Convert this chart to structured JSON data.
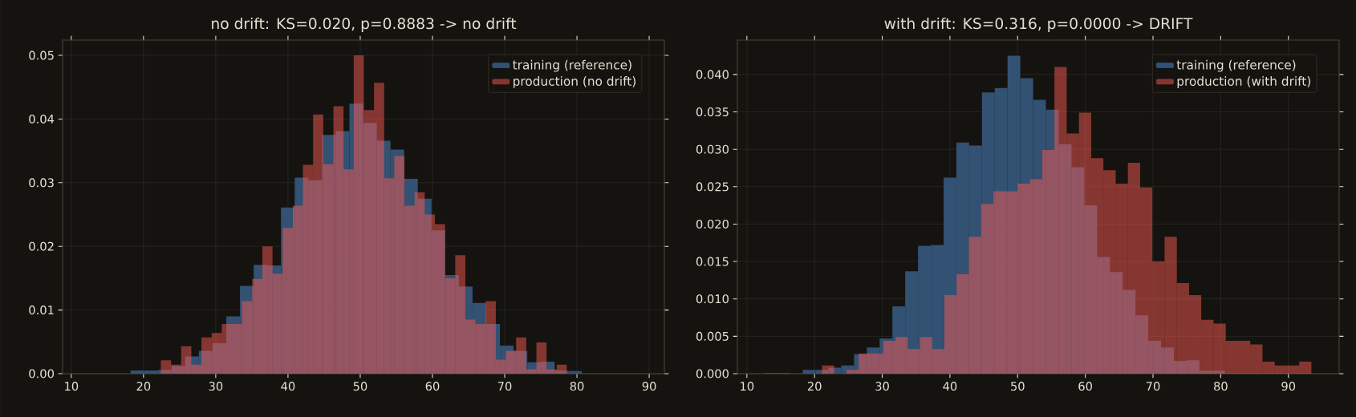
{
  "chart_data": [
    {
      "type": "histogram",
      "title": "no drift: KS=0.020, p=0.8883 -> no drift",
      "xlim": [
        8.8,
        92.1
      ],
      "ylim": [
        0,
        0.0524
      ],
      "xticks": [
        10,
        20,
        30,
        40,
        50,
        60,
        70,
        80,
        90
      ],
      "yticks": [
        {
          "value": 0,
          "label": "0.00"
        },
        {
          "value": 0.01,
          "label": "0.01"
        },
        {
          "value": 0.02,
          "label": "0.02"
        },
        {
          "value": 0.03,
          "label": "0.03"
        },
        {
          "value": 0.04,
          "label": "0.04"
        },
        {
          "value": 0.05,
          "label": "0.05"
        }
      ],
      "grid": true,
      "legend": "top right",
      "bins": [
        18.2,
        20.09,
        21.99,
        23.88,
        25.78,
        27.67,
        29.56,
        31.46,
        33.35,
        35.25,
        37.14,
        39.03,
        40.93,
        42.82,
        44.72,
        46.61,
        48.5,
        50.4,
        52.29,
        54.19,
        56.08,
        57.97,
        59.87,
        61.76,
        63.66,
        65.55,
        67.44,
        69.34,
        71.23,
        73.13,
        75.02,
        76.91,
        78.81,
        80.7
      ],
      "series": [
        {
          "name": "training (reference)",
          "color": "#335172",
          "values": [
            0.0005,
            0.0005,
            0.0006,
            0.0012,
            0.0027,
            0.0036,
            0.0048,
            0.009,
            0.0138,
            0.0171,
            0.017,
            0.0261,
            0.0308,
            0.0304,
            0.0375,
            0.0381,
            0.0424,
            0.0394,
            0.0366,
            0.0352,
            0.0306,
            0.0275,
            0.0225,
            0.0155,
            0.0137,
            0.0111,
            0.0078,
            0.0044,
            0.0036,
            0.0018,
            0.0019,
            0.0005,
            0.0004
          ]
        },
        {
          "name": "production (no drift)",
          "color": "#f75951",
          "bins": [
            22.4,
            23.81,
            25.21,
            26.62,
            28.02,
            29.43,
            30.83,
            32.24,
            33.64,
            35.05,
            36.45,
            37.86,
            39.26,
            40.67,
            42.07,
            43.48,
            44.88,
            46.29,
            47.69,
            49.1,
            50.5,
            51.91,
            53.31,
            54.72,
            56.12,
            57.53,
            58.93,
            60.34,
            61.74,
            63.15,
            64.55,
            65.96,
            67.36,
            68.77,
            70.17,
            71.58,
            72.98,
            74.39,
            75.79,
            77.2,
            78.6
          ],
          "values": [
            0.0021,
            0.0014,
            0.0043,
            0.0014,
            0.0057,
            0.0064,
            0.0078,
            0.0078,
            0.0114,
            0.0149,
            0.02,
            0.0157,
            0.0229,
            0.0264,
            0.0328,
            0.0407,
            0.0329,
            0.042,
            0.0321,
            0.05,
            0.0414,
            0.0457,
            0.0307,
            0.0342,
            0.0264,
            0.0285,
            0.025,
            0.0235,
            0.015,
            0.0186,
            0.0085,
            0.0078,
            0.0114,
            0.0022,
            0.0036,
            0.0057,
            0.0007,
            0.0049,
            0.0007,
            0.0014
          ]
        }
      ]
    },
    {
      "type": "histogram",
      "title": "with drift: KS=0.316, p=0.0000 -> DRIFT",
      "xlim": [
        8.6,
        97.5
      ],
      "ylim": [
        0,
        0.0446
      ],
      "xticks": [
        10,
        20,
        30,
        40,
        50,
        60,
        70,
        80,
        90
      ],
      "yticks": [
        {
          "value": 0,
          "label": "0.000"
        },
        {
          "value": 0.005,
          "label": "0.005"
        },
        {
          "value": 0.01,
          "label": "0.010"
        },
        {
          "value": 0.015,
          "label": "0.015"
        },
        {
          "value": 0.02,
          "label": "0.020"
        },
        {
          "value": 0.025,
          "label": "0.025"
        },
        {
          "value": 0.03,
          "label": "0.030"
        },
        {
          "value": 0.035,
          "label": "0.035"
        },
        {
          "value": 0.04,
          "label": "0.040"
        }
      ],
      "grid": true,
      "legend": "top right",
      "bins": [
        12.6,
        14.49,
        16.38,
        18.27,
        20.16,
        22.05,
        23.94,
        25.83,
        27.72,
        29.61,
        31.5,
        33.39,
        35.28,
        37.17,
        39.06,
        40.95,
        42.84,
        44.73,
        46.62,
        48.51,
        50.4,
        52.29,
        54.18,
        56.07,
        57.96,
        59.85,
        61.74,
        63.63,
        65.52,
        67.41,
        69.3,
        71.19,
        73.08,
        74.97,
        76.86,
        78.75,
        80.64
      ],
      "series": [
        {
          "name": "training (reference)",
          "color": "#335172",
          "values": [
            0.0001,
            0.0001,
            0,
            0.0005,
            0.0005,
            0.0008,
            0.0011,
            0.0026,
            0.0035,
            0.0047,
            0.009,
            0.0137,
            0.0171,
            0.0172,
            0.0262,
            0.0309,
            0.0305,
            0.0376,
            0.0382,
            0.0425,
            0.0395,
            0.0366,
            0.0353,
            0.0307,
            0.0276,
            0.0225,
            0.0156,
            0.0136,
            0.0112,
            0.0078,
            0.0044,
            0.0035,
            0.0017,
            0.0018,
            0.0004,
            0.0004
          ]
        },
        {
          "name": "production (with drift)",
          "color": "#f75951",
          "bins": [
            21.1,
            22.91,
            24.72,
            26.52,
            28.33,
            30.14,
            31.95,
            33.75,
            35.56,
            37.37,
            39.18,
            40.98,
            42.79,
            44.6,
            46.41,
            48.21,
            50.02,
            51.83,
            53.64,
            55.44,
            57.25,
            59.06,
            60.87,
            62.67,
            64.48,
            66.29,
            68.1,
            69.9,
            71.71,
            73.52,
            75.33,
            77.13,
            78.94,
            80.75,
            82.56,
            84.36,
            86.17,
            87.98,
            89.79,
            91.59,
            93.4
          ],
          "values": [
            0.0011,
            0,
            0.0005,
            0.0027,
            0.0027,
            0.0044,
            0.0049,
            0.0033,
            0.0049,
            0.0033,
            0.0105,
            0.0133,
            0.0183,
            0.0227,
            0.0244,
            0.0244,
            0.0254,
            0.026,
            0.0299,
            0.041,
            0.0321,
            0.0349,
            0.0288,
            0.0272,
            0.0254,
            0.0282,
            0.0249,
            0.015,
            0.0183,
            0.0121,
            0.0105,
            0.0072,
            0.0067,
            0.0044,
            0.0044,
            0.0039,
            0.0016,
            0.0011,
            0.0011,
            0.0016
          ]
        }
      ]
    }
  ]
}
